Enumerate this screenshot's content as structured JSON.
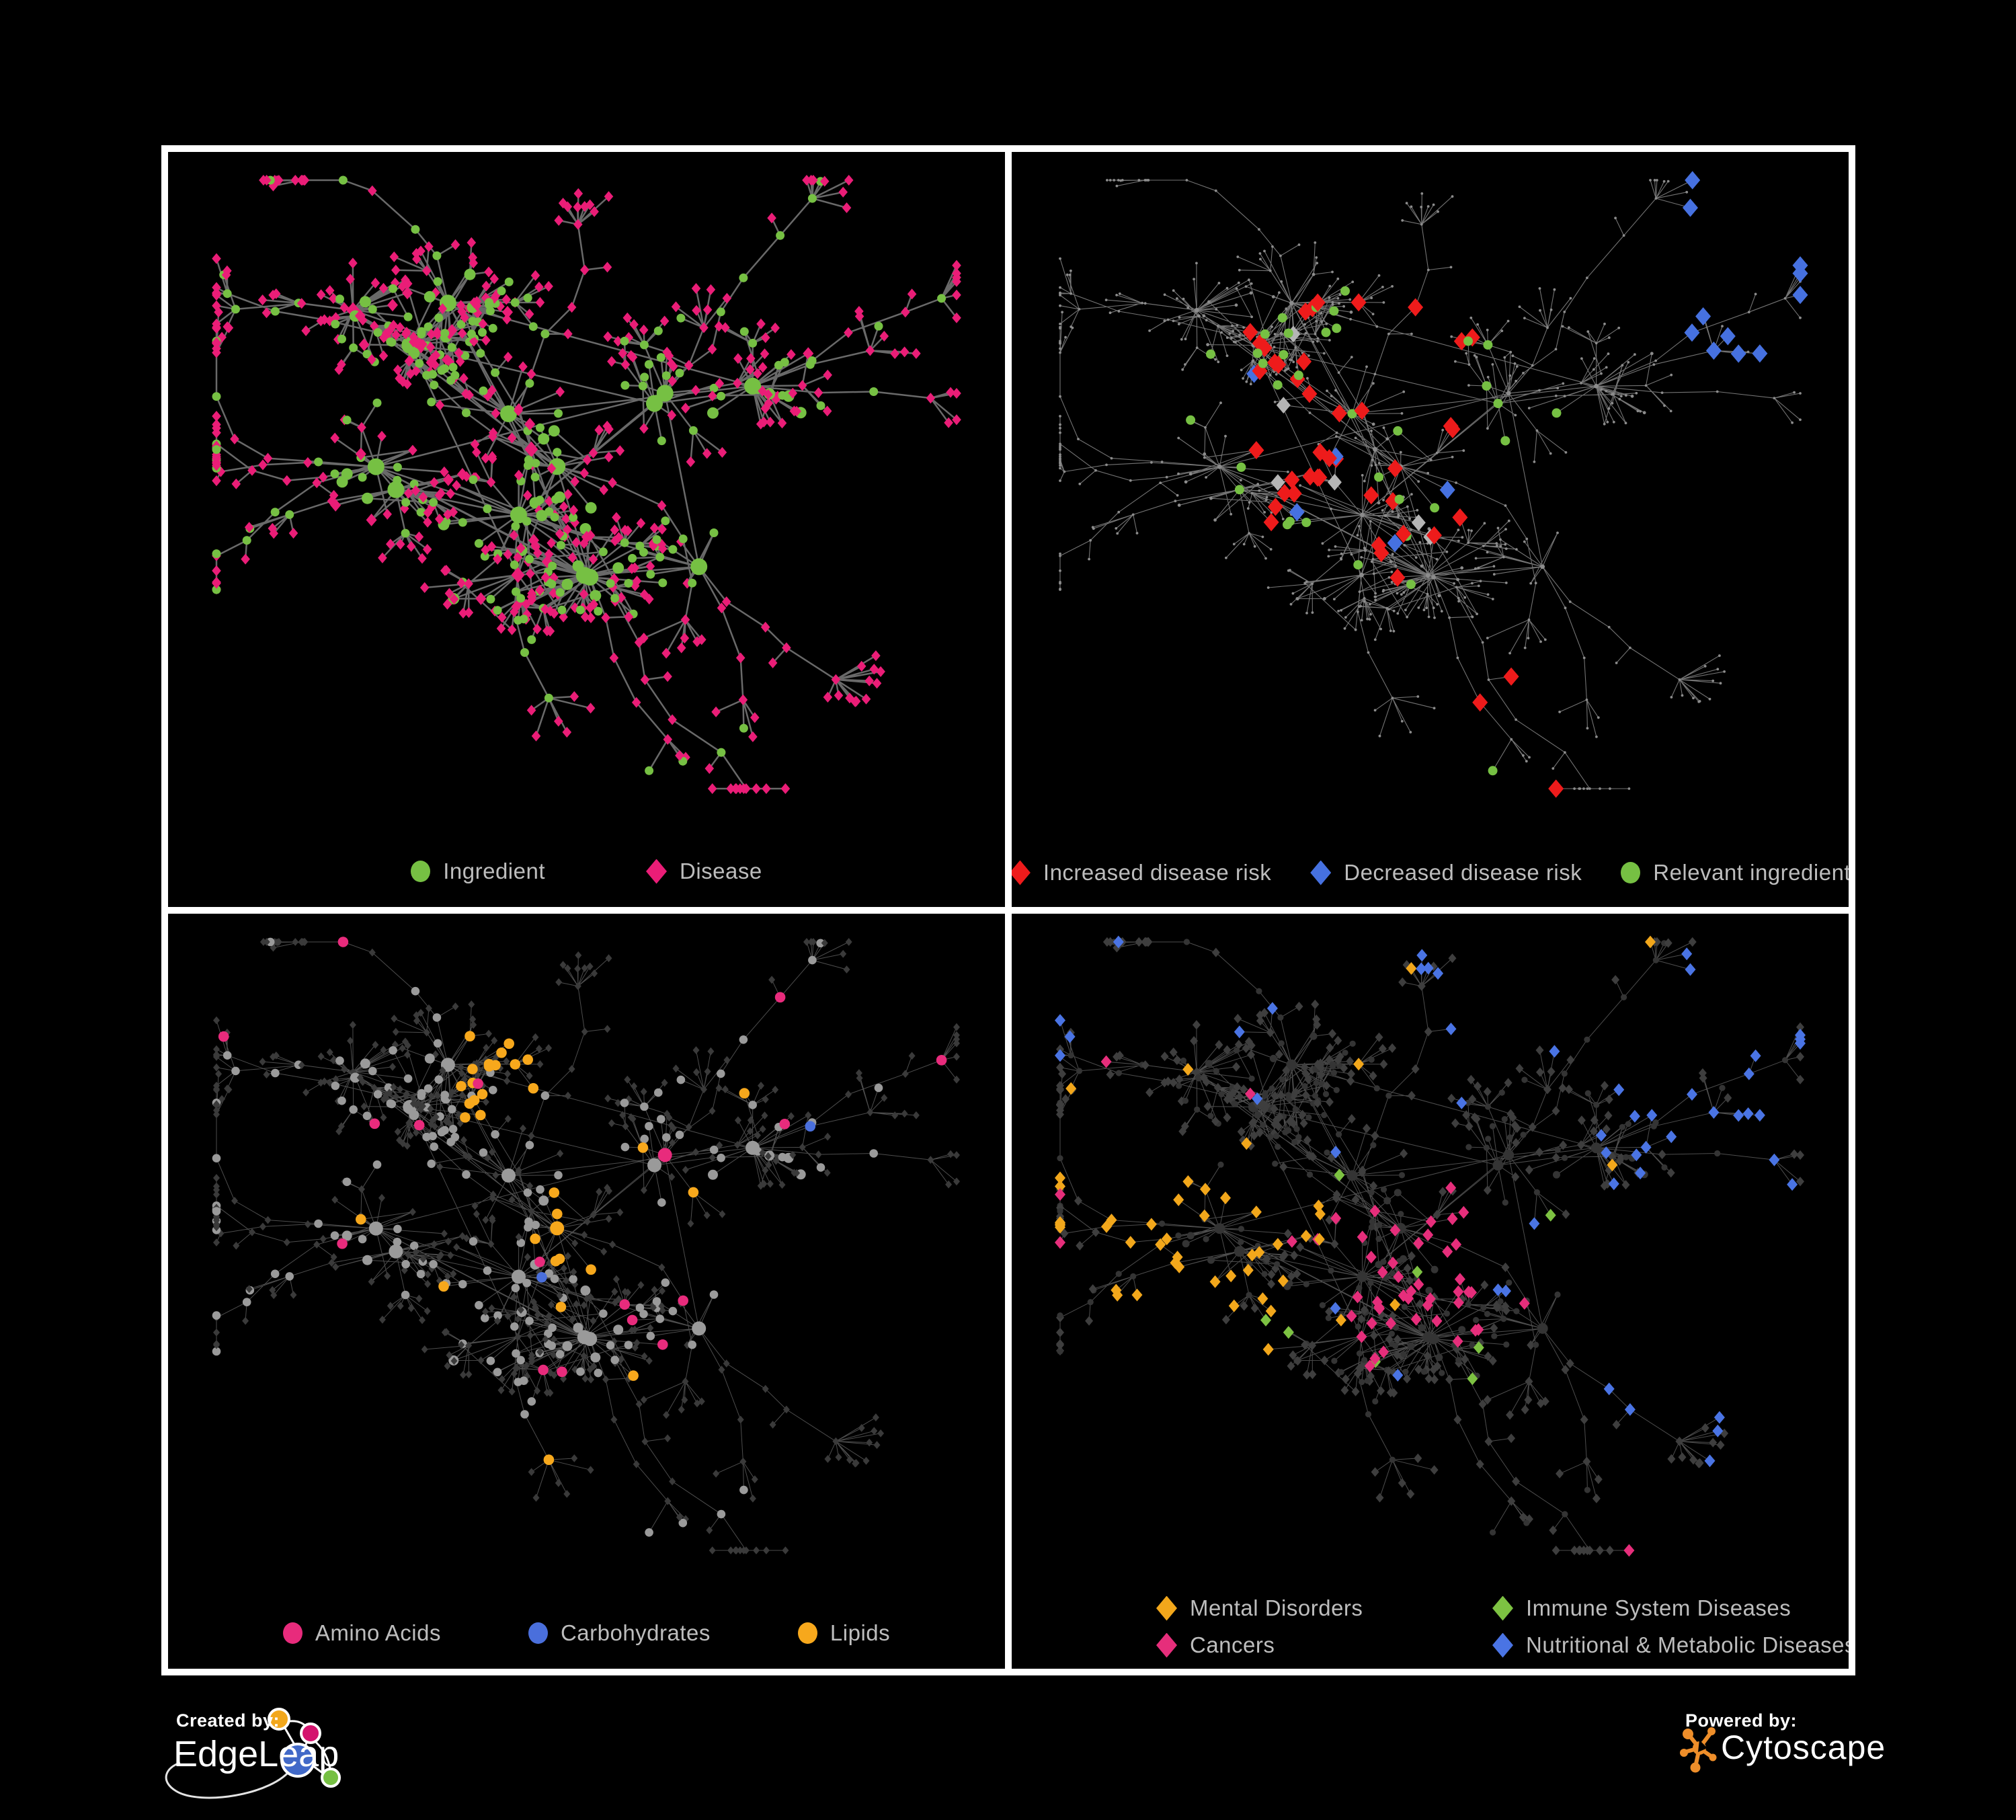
{
  "figure": {
    "background": "#000000",
    "panel_background": "#000000",
    "panel_border_color": "#FFFFFF",
    "legend_text_color": "#BDBDBD"
  },
  "colors": {
    "ingredient_green": "#76C043",
    "disease_pink": "#EA1D77",
    "risk_red": "#EE1B1B",
    "risk_blue": "#4671E0",
    "neutral_gray": "#B5B5B5",
    "amino_pink": "#E82B7C",
    "carb_blue": "#4A6FDC",
    "lipid_orange": "#F7A81C",
    "mental_orange": "#F2A71B",
    "immune_green": "#7DC242",
    "cancer_pink": "#E62E7B",
    "nutri_blue": "#4A74E4"
  },
  "network": {
    "seed": 11,
    "description": "Ingredient-disease association network drawn four times with different colorings",
    "node_shapes": {
      "circle": "ingredient",
      "diamond": "disease"
    }
  },
  "panels": [
    {
      "name": "ingredient-disease-network",
      "legend": [
        {
          "label": "Ingredient",
          "shape": "circle",
          "color": "#76C043"
        },
        {
          "label": "Disease",
          "shape": "diamond",
          "color": "#EA1D77"
        }
      ],
      "style": {
        "mode": "bipartite",
        "edge_color": "#6F6F6F",
        "edge_width": 2.5,
        "edge_opacity": 0.95
      }
    },
    {
      "name": "disease-risk-network",
      "legend": [
        {
          "label": "Increased disease risk",
          "shape": "diamond",
          "color": "#EE1B1B"
        },
        {
          "label": "Decreased disease risk",
          "shape": "diamond",
          "color": "#4671E0"
        },
        {
          "label": "Relevant ingredient",
          "shape": "circle",
          "color": "#76C043"
        }
      ],
      "style": {
        "mode": "risk",
        "edge_color": "#999999",
        "edge_width": 1.1,
        "edge_opacity": 0.75,
        "base_dot_color": "#8C8C8C",
        "neutral_color": "#B5B5B5"
      }
    },
    {
      "name": "nutrient-class-network",
      "legend": [
        {
          "label": "Amino Acids",
          "shape": "circle",
          "color": "#E82B7C"
        },
        {
          "label": "Carbohydrates",
          "shape": "circle",
          "color": "#4A6FDC"
        },
        {
          "label": "Lipids",
          "shape": "circle",
          "color": "#F7A81C"
        }
      ],
      "style": {
        "mode": "nutrient",
        "edge_color": "#9A9A9A",
        "edge_width": 1,
        "edge_opacity": 0.5,
        "dim_diamond": "#3A3A3A",
        "base_circle": "#9A9A9A"
      }
    },
    {
      "name": "disease-category-network",
      "legend": [
        {
          "label": "Mental Disorders",
          "shape": "diamond",
          "color": "#F2A71B"
        },
        {
          "label": "Immune System Diseases",
          "shape": "diamond",
          "color": "#7DC242"
        },
        {
          "label": "Cancers",
          "shape": "diamond",
          "color": "#E62E7B"
        },
        {
          "label": "Nutritional & Metabolic Diseases",
          "shape": "diamond",
          "color": "#4A74E4"
        }
      ],
      "style": {
        "mode": "category",
        "edge_color": "#9A9A9A",
        "edge_width": 1,
        "edge_opacity": 0.5,
        "dim_circle": "#343434",
        "dim_diamond": "#3E3E3E"
      }
    }
  ],
  "footer": {
    "created_by_label": "Created by:",
    "brand_left": "EdgeLeap",
    "powered_by_label": "Powered by:",
    "brand_right": "Cytoscape",
    "text_color": "#FFFFFF",
    "edgeleap_logo_colors": {
      "orange": "#F2A71B",
      "pink": "#D4146E",
      "blue": "#4169C8",
      "green": "#76C043",
      "outline": "#FFFFFF"
    },
    "cytoscape_logo_color": "#EE8E2A"
  }
}
